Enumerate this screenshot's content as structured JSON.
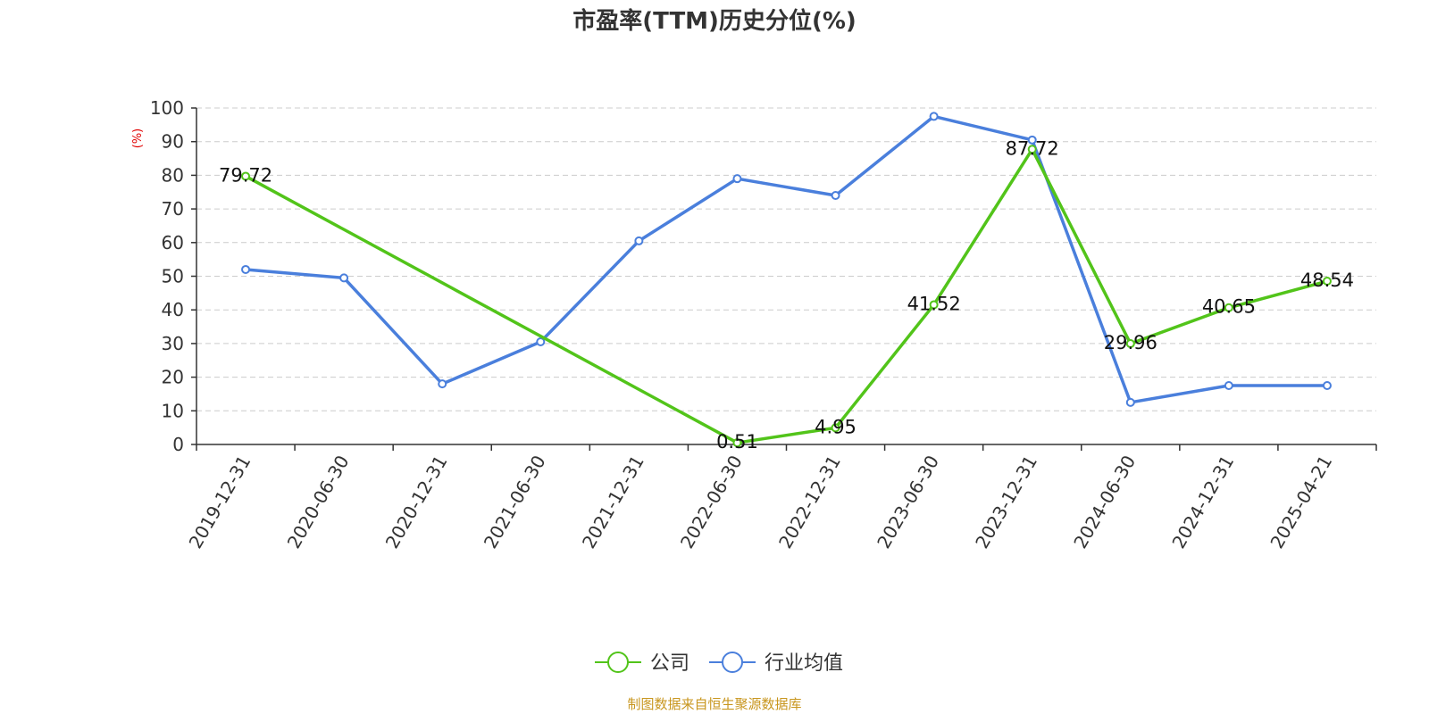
{
  "chart_data": {
    "type": "line",
    "title": "市盈率(TTM)历史分位(%)",
    "ylabel": "(%)",
    "ylim": [
      0,
      100
    ],
    "yticks": [
      0,
      10,
      20,
      30,
      40,
      50,
      60,
      70,
      80,
      90,
      100
    ],
    "x": [
      "2019-12-31",
      "2020-06-30",
      "2020-12-31",
      "2021-06-30",
      "2021-12-31",
      "2022-06-30",
      "2022-12-31",
      "2023-06-30",
      "2023-12-31",
      "2024-06-30",
      "2024-12-31",
      "2025-04-21"
    ],
    "series": [
      {
        "name": "公司",
        "color": "#52c41a",
        "values": [
          79.72,
          null,
          null,
          null,
          null,
          0.51,
          4.95,
          41.52,
          87.72,
          29.96,
          40.65,
          48.54
        ],
        "labels": [
          "79.72",
          null,
          null,
          null,
          null,
          "0.51",
          "4.95",
          "41.52",
          "87.72",
          "29.96",
          "40.65",
          "48.54"
        ]
      },
      {
        "name": "行业均值",
        "color": "#4a7fdc",
        "values": [
          52,
          49.5,
          18,
          30.5,
          60.5,
          79,
          74,
          97.5,
          90.5,
          12.5,
          17.5,
          17.5
        ]
      }
    ],
    "grid": true,
    "legend_position": "bottom-center"
  },
  "source_text": "制图数据来自恒生聚源数据库",
  "colors": {
    "title": "#333333",
    "ylabel": "#e00000",
    "source": "#c8961e",
    "grid": "#cccccc",
    "axis": "#333333"
  }
}
